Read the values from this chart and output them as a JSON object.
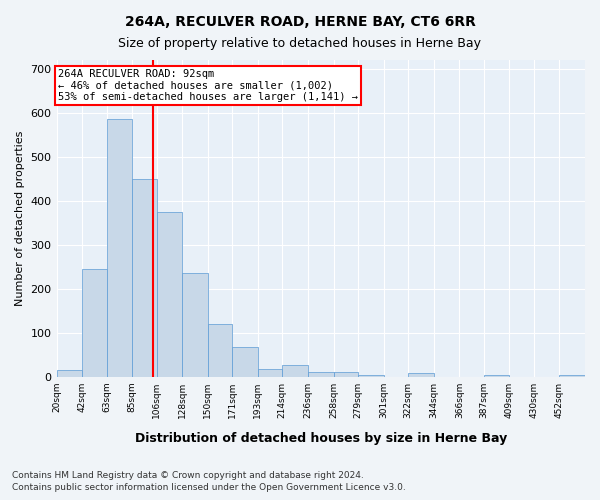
{
  "title1": "264A, RECULVER ROAD, HERNE BAY, CT6 6RR",
  "title2": "Size of property relative to detached houses in Herne Bay",
  "xlabel": "Distribution of detached houses by size in Herne Bay",
  "ylabel": "Number of detached properties",
  "footnote1": "Contains HM Land Registry data © Crown copyright and database right 2024.",
  "footnote2": "Contains public sector information licensed under the Open Government Licence v3.0.",
  "annotation_line1": "264A RECULVER ROAD: 92sqm",
  "annotation_line2": "← 46% of detached houses are smaller (1,002)",
  "annotation_line3": "53% of semi-detached houses are larger (1,141) →",
  "bar_color": "#c8d8e8",
  "bar_edge_color": "#5b9bd5",
  "property_line_x": 92,
  "property_line_color": "red",
  "tick_labels": [
    "20sqm",
    "42sqm",
    "63sqm",
    "85sqm",
    "106sqm",
    "128sqm",
    "150sqm",
    "171sqm",
    "193sqm",
    "214sqm",
    "236sqm",
    "258sqm",
    "279sqm",
    "301sqm",
    "322sqm",
    "344sqm",
    "366sqm",
    "387sqm",
    "409sqm",
    "430sqm",
    "452sqm"
  ],
  "bin_edges": [
    9,
    31,
    52,
    74,
    95,
    117,
    139,
    160,
    182,
    203,
    225,
    247,
    268,
    290,
    311,
    333,
    355,
    376,
    398,
    419,
    441,
    463
  ],
  "values": [
    15,
    245,
    585,
    450,
    375,
    235,
    120,
    68,
    18,
    28,
    12,
    10,
    5,
    0,
    8,
    0,
    0,
    5,
    0,
    0,
    5
  ],
  "ylim": [
    0,
    720
  ],
  "yticks": [
    0,
    100,
    200,
    300,
    400,
    500,
    600,
    700
  ],
  "background_color": "#f0f4f8",
  "grid_color": "#ffffff",
  "ax_bg_color": "#e8f0f8"
}
